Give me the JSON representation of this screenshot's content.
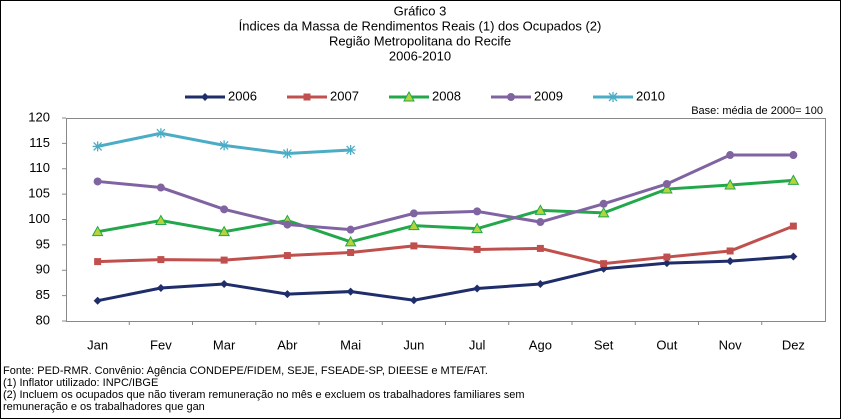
{
  "chart_data": {
    "type": "line",
    "title": [
      "Gráfico 3",
      "Índices da Massa de Rendimentos Reais (1) dos Ocupados (2)",
      "Região Metropolitana do Recife",
      "2006-2010"
    ],
    "annotation": "Base: média de 2000= 100",
    "categories": [
      "Jan",
      "Fev",
      "Mar",
      "Abr",
      "Mai",
      "Jun",
      "Jul",
      "Ago",
      "Set",
      "Out",
      "Nov",
      "Dez"
    ],
    "series": [
      {
        "name": "2006",
        "color": "#1f2d6b",
        "marker": "diamond",
        "values": [
          84.0,
          86.5,
          87.3,
          85.3,
          85.8,
          84.1,
          86.4,
          87.3,
          90.3,
          91.4,
          91.8,
          92.7
        ]
      },
      {
        "name": "2007",
        "color": "#c0504d",
        "marker": "square",
        "values": [
          91.7,
          92.1,
          92.0,
          92.9,
          93.5,
          94.8,
          94.1,
          94.3,
          91.3,
          92.6,
          93.8,
          98.7
        ]
      },
      {
        "name": "2008",
        "color": "#22a84a",
        "marker": "triangle",
        "values": [
          97.6,
          99.8,
          97.6,
          99.8,
          95.6,
          98.8,
          98.2,
          101.8,
          101.3,
          106.0,
          106.8,
          107.7
        ]
      },
      {
        "name": "2009",
        "color": "#8064a2",
        "marker": "circle",
        "values": [
          107.5,
          106.3,
          102.0,
          99.0,
          98.0,
          101.2,
          101.6,
          99.5,
          103.1,
          107.0,
          112.7,
          112.7
        ]
      },
      {
        "name": "2010",
        "color": "#4bacc6",
        "marker": "star",
        "values": [
          114.4,
          117.0,
          114.6,
          113.0,
          113.7,
          null,
          null,
          null,
          null,
          null,
          null,
          null
        ]
      }
    ],
    "ylim": [
      80,
      120
    ],
    "yticks": [
      80,
      85,
      90,
      95,
      100,
      105,
      110,
      115,
      120
    ],
    "notes": [
      "Fonte: PED-RMR. Convênio: Agência CONDEPE/FIDEM, SEJE, FSEADE-SP, DIEESE e MTE/FAT.",
      "(1) Inflator utilizado: INPC/IBGE",
      "(2) Incluem os ocupados que não tiveram remuneração no mês e excluem os trabalhadores familiares sem",
      "remuneração e os trabalhadores que gan"
    ]
  }
}
